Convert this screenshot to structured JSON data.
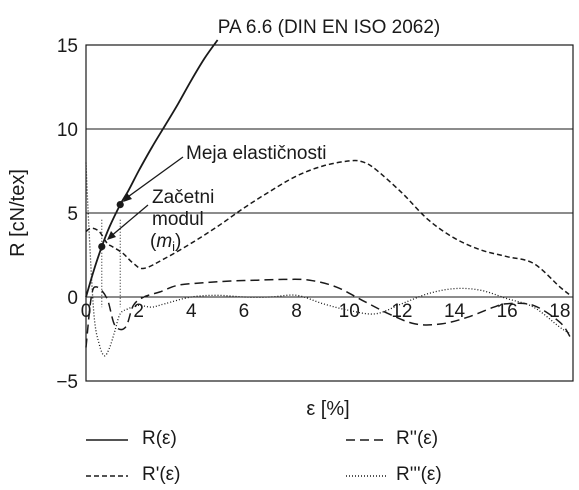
{
  "chart_data": {
    "type": "line",
    "title": "PA 6.6 (DIN EN ISO 2062)",
    "xlabel": "ε [%]",
    "ylabel": "R [cN/tex]",
    "xlim": [
      0,
      18.5
    ],
    "ylim": [
      -5,
      15
    ],
    "xticks": [
      "0",
      "2",
      "4",
      "6",
      "8",
      "10",
      "12",
      "14",
      "16",
      "18"
    ],
    "yticks": [
      "−5",
      "0",
      "5",
      "10",
      "15"
    ],
    "grid": "horizontal",
    "legend_position": "bottom",
    "series": [
      {
        "name": "R(ε)",
        "style": "solid",
        "x": [
          0,
          0.3,
          0.6,
          0.9,
          1.3,
          1.6,
          2.0,
          2.5,
          3.0,
          3.5,
          4.0,
          4.5,
          5.0
        ],
        "y": [
          0,
          1.6,
          3.0,
          4.2,
          5.5,
          6.3,
          7.5,
          8.9,
          10.2,
          11.5,
          12.9,
          14.2,
          15.3
        ]
      },
      {
        "name": "R'(ε)",
        "style": "dashed",
        "x": [
          0,
          0.2,
          0.5,
          0.8,
          1.0,
          1.4,
          1.8,
          2.2,
          3.0,
          4.0,
          5.0,
          6.0,
          7.0,
          8.0,
          9.0,
          10.0,
          10.5,
          11.0,
          12.0,
          13.0,
          14.0,
          15.0,
          16.0,
          17.0,
          18.0,
          18.4
        ],
        "y": [
          3.9,
          4.1,
          3.9,
          3.2,
          3.0,
          2.6,
          2.0,
          1.7,
          2.3,
          3.2,
          4.2,
          5.3,
          6.3,
          7.2,
          7.8,
          8.1,
          8.05,
          7.6,
          6.2,
          4.6,
          3.5,
          2.8,
          2.4,
          2.0,
          0.6,
          0.1
        ]
      },
      {
        "name": "R''(ε)",
        "style": "long-dashed",
        "x": [
          0,
          0.2,
          0.4,
          0.8,
          1.1,
          1.5,
          1.8,
          2.2,
          2.8,
          3.5,
          4.5,
          5.5,
          6.5,
          7.5,
          8.5,
          9.5,
          10.5,
          11.5,
          12.5,
          13.5,
          14.5,
          15.5,
          16.0,
          17.0,
          18.0,
          18.4
        ],
        "y": [
          -3.0,
          0.0,
          0.6,
          -0.1,
          -1.7,
          -1.8,
          -0.5,
          0.0,
          0.3,
          0.7,
          0.85,
          0.95,
          1.0,
          1.05,
          1.0,
          0.6,
          -0.2,
          -1.0,
          -1.6,
          -1.6,
          -1.2,
          -0.6,
          -0.4,
          -0.5,
          -1.5,
          -2.4
        ]
      },
      {
        "name": "R'''(ε)",
        "style": "dotted",
        "x": [
          0,
          0.1,
          0.3,
          0.5,
          0.7,
          0.9,
          1.1,
          1.3,
          1.6,
          2.0,
          2.5,
          3.0,
          4.0,
          5.0,
          6.0,
          7.0,
          8.0,
          9.0,
          10.0,
          11.0,
          12.0,
          13.0,
          14.0,
          15.0,
          16.0,
          17.0,
          18.0,
          18.4
        ],
        "y": [
          8.0,
          4.5,
          -1.0,
          -2.8,
          -3.5,
          -3.0,
          -2.0,
          -1.0,
          -0.7,
          -0.5,
          -0.6,
          -0.4,
          0.0,
          0.1,
          0.0,
          0.0,
          0.1,
          -0.4,
          -0.8,
          -1.0,
          -0.4,
          0.2,
          0.5,
          0.4,
          -0.1,
          -0.6,
          -1.8,
          -2.2
        ]
      }
    ],
    "markers": [
      {
        "x": 0.6,
        "y": 3.0
      },
      {
        "x": 1.3,
        "y": 5.5
      }
    ],
    "annotations": [
      {
        "text": "Meja elastičnosti"
      },
      {
        "lines": [
          "Začetni",
          "modul",
          "(mi)"
        ]
      }
    ]
  }
}
